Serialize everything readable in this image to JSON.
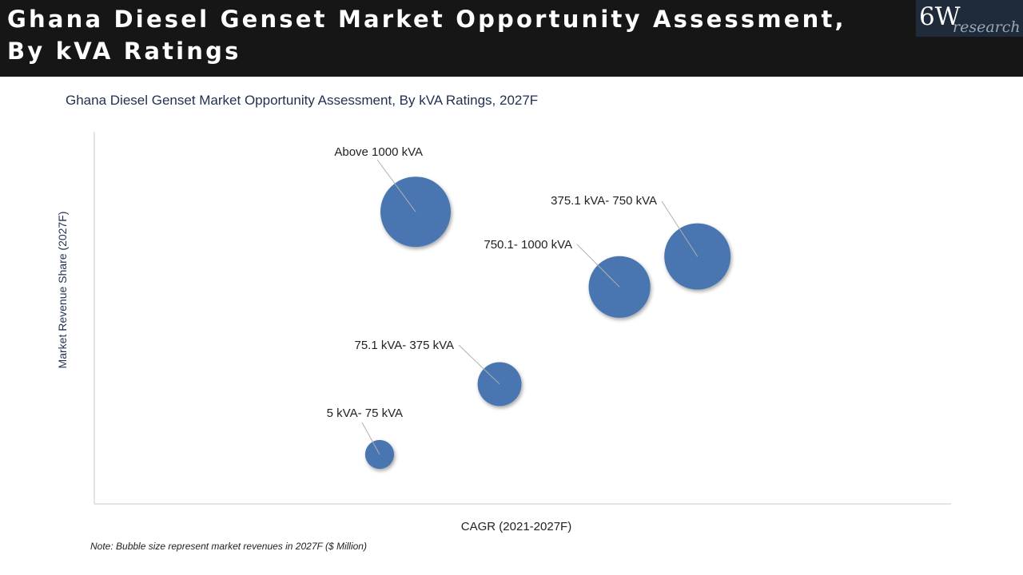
{
  "header": {
    "title": "Ghana Diesel Genset Market Opportunity Assessment, By kVA Ratings",
    "logo_main": "6W",
    "logo_sub": "research"
  },
  "chart_data": {
    "type": "bubble",
    "title": "Ghana Diesel Genset Market Opportunity Assessment, By kVA Ratings, 2027F",
    "xlabel": "CAGR (2021-2027F)",
    "ylabel": "Market Revenue Share (2027F)",
    "note": "Note: Bubble size represent market revenues in 2027F ($ Million)",
    "xlim": [
      0,
      100
    ],
    "ylim": [
      0,
      100
    ],
    "bubble_color": "#4a76b0",
    "points": [
      {
        "label": "Above 1000 kVA",
        "x": 37.5,
        "y": 78.5,
        "size": 100
      },
      {
        "label": "375.1 kVA- 750 kVA",
        "x": 70.4,
        "y": 66.5,
        "size": 89
      },
      {
        "label": "750.1- 1000 kVA",
        "x": 61.3,
        "y": 58.3,
        "size": 77
      },
      {
        "label": "75.1 kVA- 375 kVA",
        "x": 47.3,
        "y": 32.2,
        "size": 39
      },
      {
        "label": "5 kVA- 75 kVA",
        "x": 33.3,
        "y": 13.3,
        "size": 17
      }
    ]
  }
}
